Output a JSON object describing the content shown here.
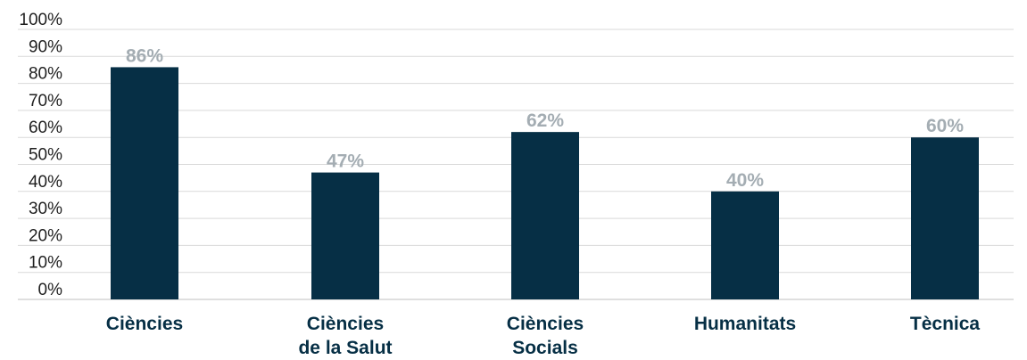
{
  "chart_data": {
    "type": "bar",
    "categories": [
      [
        "Ciències"
      ],
      [
        "Ciències",
        "de la Salut"
      ],
      [
        "Ciències",
        "Socials"
      ],
      [
        "Humanitats"
      ],
      [
        "Tècnica"
      ]
    ],
    "values": [
      86,
      47,
      62,
      40,
      60
    ],
    "value_labels": [
      "86%",
      "47%",
      "62%",
      "40%",
      "60%"
    ],
    "ylim": [
      0,
      100
    ],
    "yticks": [
      "0%",
      "10%",
      "20%",
      "30%",
      "40%",
      "50%",
      "60%",
      "70%",
      "80%",
      "90%",
      "100%"
    ],
    "grid": true,
    "bar_color": "#062f45",
    "label_color": "#a4adb3",
    "gridline_color": "#d9d9d9"
  }
}
